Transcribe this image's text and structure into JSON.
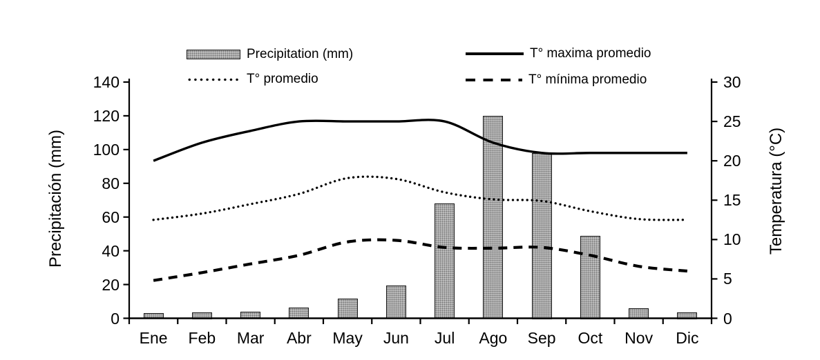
{
  "chart_data": {
    "type": "combo-bar-line",
    "title": "",
    "categories": [
      "Ene",
      "Feb",
      "Mar",
      "Abr",
      "May",
      "Jun",
      "Jul",
      "Ago",
      "Sep",
      "Oct",
      "Nov",
      "Dic"
    ],
    "bar_series": {
      "name": "Precipitation (mm)",
      "axis": "left",
      "values": [
        3,
        3.5,
        4,
        6.5,
        11.5,
        19.5,
        68,
        120,
        98,
        49,
        6,
        3.5
      ]
    },
    "line_series": [
      {
        "name": "T° maxima promedio",
        "style": "solid",
        "axis": "right",
        "values": [
          20,
          22.3,
          23.8,
          25,
          25,
          25,
          25,
          22.3,
          21,
          21,
          21,
          21
        ]
      },
      {
        "name": "T° promedio",
        "style": "dotted",
        "axis": "right",
        "values": [
          12.5,
          13.3,
          14.5,
          15.8,
          17.8,
          17.7,
          16,
          15.1,
          14.9,
          13.6,
          12.6,
          12.5
        ]
      },
      {
        "name": "T° mínima promedio",
        "style": "dashed",
        "axis": "right",
        "values": [
          4.8,
          5.8,
          6.9,
          8,
          9.7,
          9.9,
          9,
          8.9,
          9,
          8,
          6.6,
          6
        ]
      }
    ],
    "left_axis": {
      "title": "Precipitación (mm)",
      "min": 0,
      "max": 140,
      "ticks": [
        0,
        20,
        40,
        60,
        80,
        100,
        120,
        140
      ]
    },
    "right_axis": {
      "title": "Temperatura (°C)",
      "min": 0,
      "max": 30,
      "ticks": [
        0,
        5,
        10,
        15,
        20,
        25,
        30
      ]
    },
    "legend": [
      {
        "label": "Precipitation (mm)",
        "swatch": "bar"
      },
      {
        "label": "T° promedio",
        "swatch": "dotted"
      },
      {
        "label": "T° maxima promedio",
        "swatch": "solid"
      },
      {
        "label": "T° mínima promedio",
        "swatch": "dashed"
      }
    ],
    "grid": false,
    "legend_position": "top"
  },
  "colors": {
    "ink": "#000000",
    "bar_fill": "#c2c2c2",
    "bar_dot": "#777777",
    "bar_border": "#121212",
    "background": "#ffffff"
  }
}
